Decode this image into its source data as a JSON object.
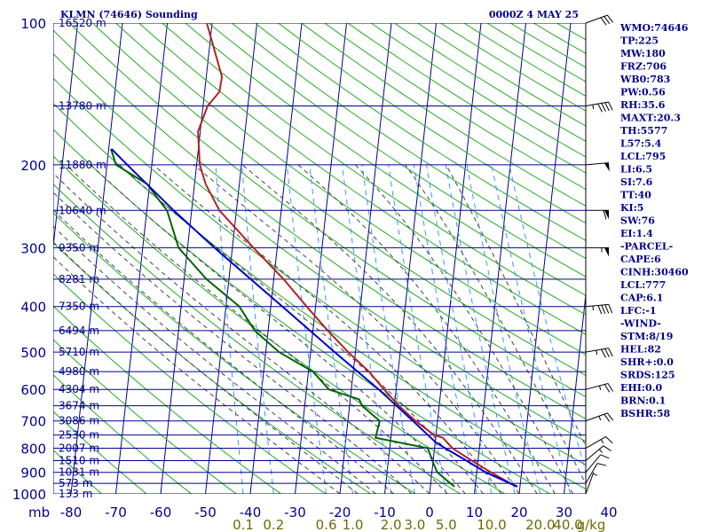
{
  "header": {
    "title": "KLMN (74646) Sounding",
    "valid_time": "0000Z  4 MAY 25"
  },
  "chart_data": {
    "type": "skew-t",
    "pressure_axis": {
      "label": "mb",
      "levels": [
        100,
        200,
        300,
        400,
        500,
        600,
        700,
        800,
        900,
        1000
      ],
      "log_scale": true
    },
    "temperature_axis": {
      "ticks": [
        -80,
        -70,
        -60,
        -50,
        -40,
        -30,
        -20,
        -10,
        0,
        10,
        20,
        30,
        40
      ]
    },
    "mixing_ratio_axis": {
      "unit": "g/kg",
      "ticks": [
        "0.1",
        "0.2",
        "0.6",
        "1.0",
        "2.0",
        "3.0",
        "5.0",
        "10.0",
        "20.0",
        "40.0"
      ]
    },
    "height_labels": [
      {
        "p": 100,
        "label": "16520 m"
      },
      {
        "p": 150,
        "label": "13780 m"
      },
      {
        "p": 200,
        "label": "11880 m"
      },
      {
        "p": 250,
        "label": "10640 m"
      },
      {
        "p": 300,
        "label": "9350 m"
      },
      {
        "p": 350,
        "label": "8281 m"
      },
      {
        "p": 400,
        "label": "7350 m"
      },
      {
        "p": 450,
        "label": "6494 m"
      },
      {
        "p": 500,
        "label": "5710 m"
      },
      {
        "p": 550,
        "label": "4980 m"
      },
      {
        "p": 600,
        "label": "4304 m"
      },
      {
        "p": 650,
        "label": "3674 m"
      },
      {
        "p": 700,
        "label": "3086 m"
      },
      {
        "p": 750,
        "label": "2530 m"
      },
      {
        "p": 800,
        "label": "2007 m"
      },
      {
        "p": 850,
        "label": "1510 m"
      },
      {
        "p": 900,
        "label": "1031 m"
      },
      {
        "p": 950,
        "label": "573 m"
      },
      {
        "p": 1000,
        "label": "133 m"
      }
    ],
    "series": [
      {
        "role": "temperature",
        "color": "#b22222",
        "points": [
          {
            "p": 965,
            "t": 19.4
          },
          {
            "p": 950,
            "t": 17.8
          },
          {
            "p": 900,
            "t": 13.2
          },
          {
            "p": 850,
            "t": 8.6
          },
          {
            "p": 800,
            "t": 4.0
          },
          {
            "p": 760,
            "t": 1.6
          },
          {
            "p": 750,
            "t": -0.4
          },
          {
            "p": 700,
            "t": -4.9
          },
          {
            "p": 650,
            "t": -9.0
          },
          {
            "p": 600,
            "t": -12.7
          },
          {
            "p": 550,
            "t": -16.5
          },
          {
            "p": 500,
            "t": -21.6
          },
          {
            "p": 450,
            "t": -26.7
          },
          {
            "p": 400,
            "t": -32.0
          },
          {
            "p": 350,
            "t": -37.8
          },
          {
            "p": 300,
            "t": -45.3
          },
          {
            "p": 250,
            "t": -53.8
          },
          {
            "p": 220,
            "t": -57.5
          },
          {
            "p": 200,
            "t": -59.3
          },
          {
            "p": 170,
            "t": -60.5
          },
          {
            "p": 150,
            "t": -59.0
          },
          {
            "p": 140,
            "t": -56.7
          },
          {
            "p": 130,
            "t": -56.5
          },
          {
            "p": 100,
            "t": -61.2
          }
        ]
      },
      {
        "role": "dewpoint",
        "color": "#006400",
        "points": [
          {
            "p": 965,
            "t": 5.4
          },
          {
            "p": 950,
            "t": 4.4
          },
          {
            "p": 900,
            "t": 1.2
          },
          {
            "p": 850,
            "t": -0.2
          },
          {
            "p": 800,
            "t": -1.5
          },
          {
            "p": 760,
            "t": -13.4
          },
          {
            "p": 700,
            "t": -12.9
          },
          {
            "p": 650,
            "t": -17.2
          },
          {
            "p": 630,
            "t": -18.0
          },
          {
            "p": 600,
            "t": -25.0
          },
          {
            "p": 550,
            "t": -29.0
          },
          {
            "p": 500,
            "t": -37.0
          },
          {
            "p": 450,
            "t": -43.0
          },
          {
            "p": 400,
            "t": -47.0
          },
          {
            "p": 350,
            "t": -55.0
          },
          {
            "p": 300,
            "t": -62.0
          },
          {
            "p": 250,
            "t": -65.5
          },
          {
            "p": 235,
            "t": -68.0
          },
          {
            "p": 220,
            "t": -70.5
          },
          {
            "p": 200,
            "t": -78.0
          },
          {
            "p": 185,
            "t": -79.5
          }
        ]
      },
      {
        "role": "parcel",
        "color": "#0000cd",
        "points": [
          {
            "p": 965,
            "t": 19.4
          },
          {
            "p": 900,
            "t": 12.0
          },
          {
            "p": 850,
            "t": 7.4
          },
          {
            "p": 800,
            "t": 2.4
          },
          {
            "p": 777,
            "t": 0.1
          },
          {
            "p": 700,
            "t": -5.5
          },
          {
            "p": 600,
            "t": -13.9
          },
          {
            "p": 500,
            "t": -24.6
          },
          {
            "p": 400,
            "t": -37.4
          },
          {
            "p": 300,
            "t": -54.0
          },
          {
            "p": 250,
            "t": -64.0
          },
          {
            "p": 200,
            "t": -75.5
          },
          {
            "p": 185,
            "t": -79.4
          }
        ]
      }
    ],
    "wind_barbs": [
      {
        "p": 1000,
        "dir": 200,
        "spd": 5
      },
      {
        "p": 950,
        "dir": 210,
        "spd": 10
      },
      {
        "p": 900,
        "dir": 220,
        "spd": 10
      },
      {
        "p": 850,
        "dir": 230,
        "spd": 15
      },
      {
        "p": 800,
        "dir": 240,
        "spd": 15
      },
      {
        "p": 700,
        "dir": 250,
        "spd": 25
      },
      {
        "p": 600,
        "dir": 255,
        "spd": 25
      },
      {
        "p": 500,
        "dir": 260,
        "spd": 35
      },
      {
        "p": 400,
        "dir": 265,
        "spd": 45
      },
      {
        "p": 300,
        "dir": 270,
        "spd": 55
      },
      {
        "p": 250,
        "dir": 270,
        "spd": 60
      },
      {
        "p": 200,
        "dir": 265,
        "spd": 50
      },
      {
        "p": 150,
        "dir": 260,
        "spd": 45
      },
      {
        "p": 100,
        "dir": 250,
        "spd": 30
      }
    ]
  },
  "indices": [
    "WMO:74646",
    "TP:225",
    "MW:180",
    "FRZ:706",
    "WB0:783",
    "PW:0.56",
    "RH:35.6",
    "MAXT:20.3",
    "TH:5577",
    "L57:5.4",
    "LCL:795",
    "LI:6.5",
    "SI:7.6",
    "TT:40",
    "KI:5",
    "SW:76",
    "EI:1.4",
    "-PARCEL-",
    "CAPE:6",
    "CINH:30460",
    "LCL:777",
    "CAP:6.1",
    "LFC:-1",
    "-WIND-",
    "STM:8/19",
    "HEL:82",
    "SHR+:0.0",
    "SRDS:125",
    "EHI:0.0",
    "BRN:0.1",
    "BSHR:58"
  ],
  "colors": {
    "isobar": "#00008b",
    "isotherm": "#00008b",
    "dry_adiabat": "#22aa22",
    "moist_adiabat": "#444444",
    "mixing_ratio": "#3399ff",
    "text": "#00008b"
  }
}
